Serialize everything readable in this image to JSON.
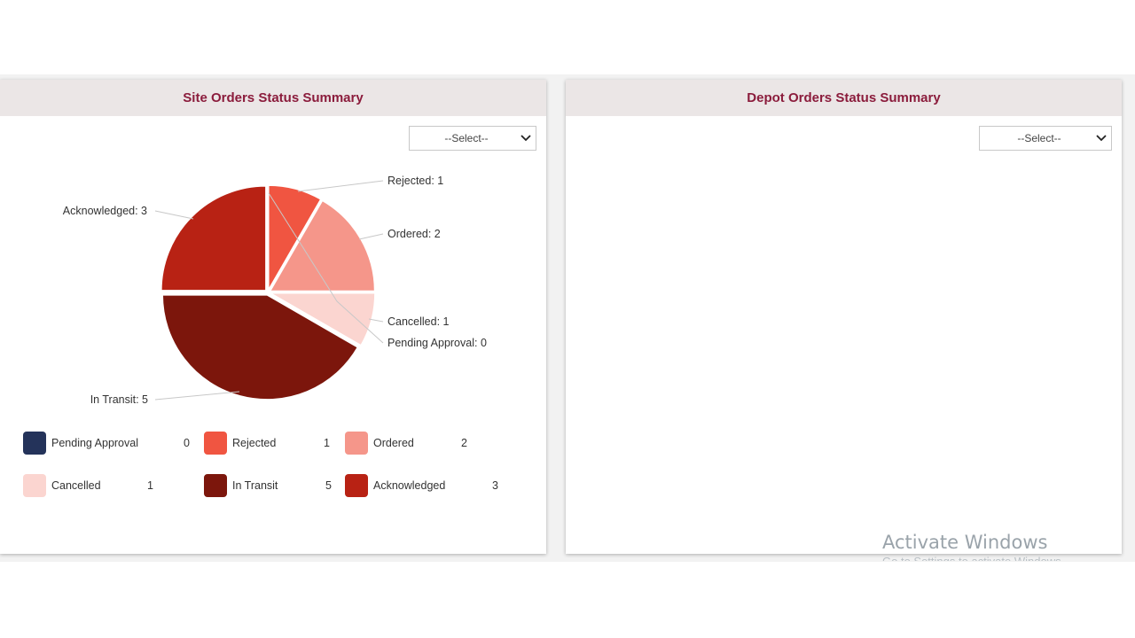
{
  "site_panel": {
    "title": "Site Orders Status Summary",
    "select_value": "--Select--"
  },
  "depot_panel": {
    "title": "Depot Orders Status Summary",
    "select_value": "--Select--"
  },
  "chart_data": {
    "type": "pie",
    "title": "",
    "slices": [
      {
        "label": "Pending Approval",
        "value": 0,
        "color": "#24335a"
      },
      {
        "label": "Rejected",
        "value": 1,
        "color": "#f05541"
      },
      {
        "label": "Ordered",
        "value": 2,
        "color": "#f5968a"
      },
      {
        "label": "Cancelled",
        "value": 1,
        "color": "#fbd5d0"
      },
      {
        "label": "In Transit",
        "value": 5,
        "color": "#7c160c"
      },
      {
        "label": "Acknowledged",
        "value": 3,
        "color": "#b82214"
      }
    ],
    "legend_placement": "bottom"
  },
  "pie_labels": {
    "rejected": "Rejected: 1",
    "ordered": "Ordered: 2",
    "cancelled": "Cancelled: 1",
    "pending": "Pending Approval: 0",
    "in_transit": "In Transit: 5",
    "acknowledged": "Acknowledged: 3"
  },
  "legend": [
    {
      "label": "Pending Approval",
      "value": "0"
    },
    {
      "label": "Rejected",
      "value": "1"
    },
    {
      "label": "Ordered",
      "value": "2"
    },
    {
      "label": "Cancelled",
      "value": "1"
    },
    {
      "label": "In Transit",
      "value": "5"
    },
    {
      "label": "Acknowledged",
      "value": "3"
    }
  ],
  "watermark": {
    "title": "Activate Windows",
    "subtitle": "Go to Settings to activate Windows."
  },
  "icons": {
    "select_chevron": "chevron-down-icon"
  }
}
